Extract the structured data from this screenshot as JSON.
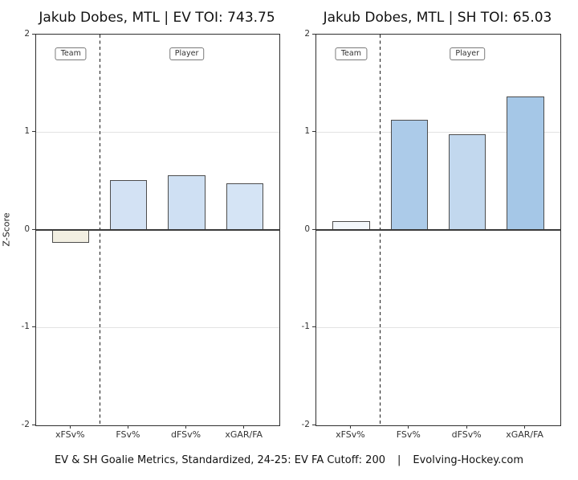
{
  "figure": {
    "caption": {
      "text": "EV & SH Goalie Metrics, Standardized, 24-25: EV FA Cutoff: 200",
      "separator": "|",
      "site": "Evolving-Hockey.com"
    }
  },
  "style": {
    "axis_color": "#2f2f2f",
    "zero_line_color": "#3a3a3a",
    "gridline_color": "#e3e3e3",
    "divider_color": "#1b1b1b",
    "bar_border_color": "#4d4d4d",
    "team_bar_negative_color": "#f2efe2",
    "team_bar_positive_color": "#f3f7fb",
    "player_bar_light_blue": "#d3e2f4",
    "player_bar_medium_blue": "#accbe9"
  },
  "chart_data": [
    {
      "type": "bar",
      "title": "Jakub Dobes, MTL | EV TOI: 743.75",
      "ylabel": "Z-Score",
      "ylim": [
        -2,
        2
      ],
      "yticks": [
        "2",
        "1",
        "0",
        "-1",
        "-2"
      ],
      "gridlines": [
        1,
        -1
      ],
      "categories": [
        "xFSv%",
        "FSv%",
        "dFSv%",
        "xGAR/FA"
      ],
      "values": [
        -0.13,
        0.51,
        0.56,
        0.48
      ],
      "bar_colors": [
        "#f2efe2",
        "#d3e2f4",
        "#cfe0f3",
        "#d5e4f5"
      ],
      "annotations": [
        {
          "label": "Team",
          "x": 1,
          "z": 1.8
        },
        {
          "label": "Player",
          "x": 3,
          "z": 1.8
        }
      ],
      "divider_x": 1.5
    },
    {
      "type": "bar",
      "title": "Jakub Dobes, MTL | SH TOI: 65.03",
      "ylabel": "Z-Score",
      "ylim": [
        -2,
        2
      ],
      "yticks": [
        "2",
        "1",
        "0",
        "-1",
        "-2"
      ],
      "gridlines": [
        1,
        -1
      ],
      "categories": [
        "xFSv%",
        "FSv%",
        "dFSv%",
        "xGAR/FA"
      ],
      "values": [
        0.09,
        1.13,
        0.98,
        1.37
      ],
      "bar_colors": [
        "#f3f7fb",
        "#accbe9",
        "#c2d8ee",
        "#a5c7e7"
      ],
      "annotations": [
        {
          "label": "Team",
          "x": 1,
          "z": 1.8
        },
        {
          "label": "Player",
          "x": 3,
          "z": 1.8
        }
      ],
      "divider_x": 1.5
    }
  ]
}
